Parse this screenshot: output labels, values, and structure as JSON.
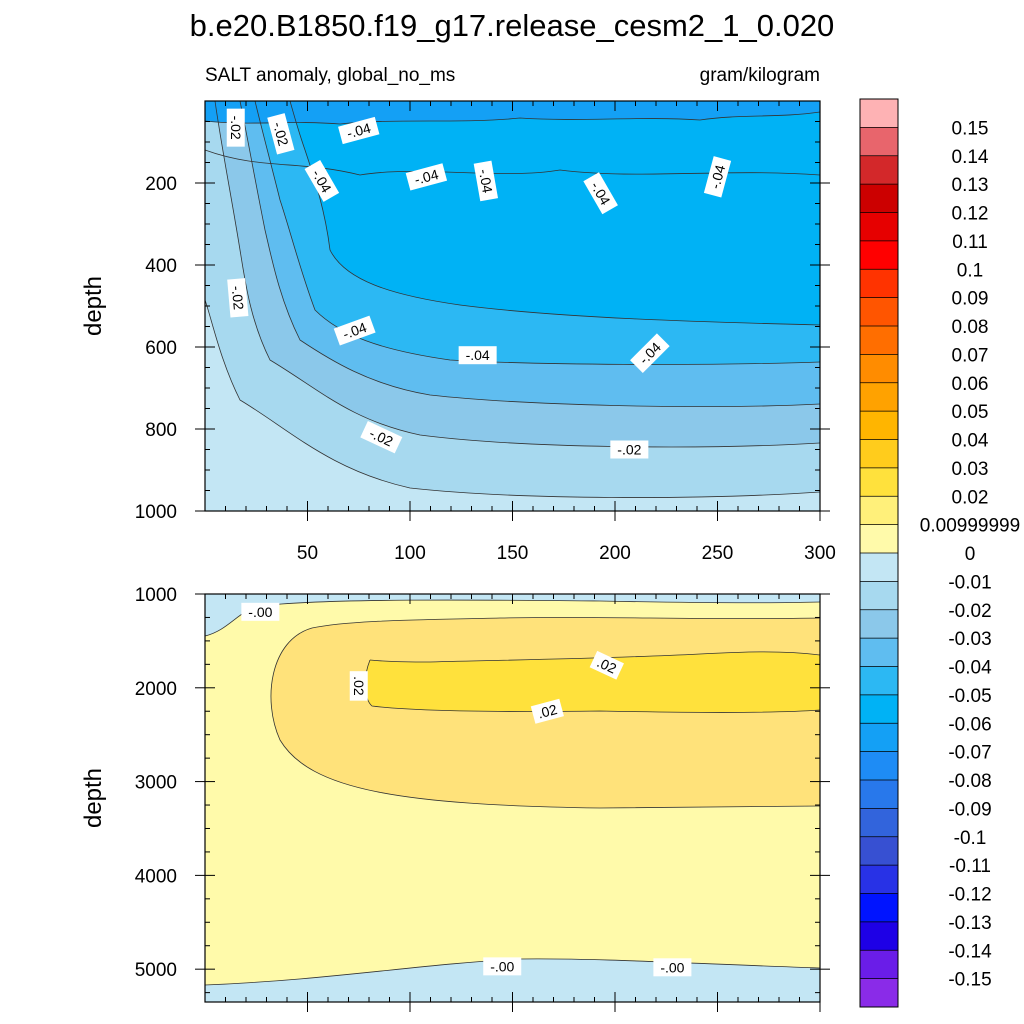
{
  "chart_data": {
    "type": "contour",
    "title": "b.e20.B1850.f19_g17.release_cesm2_1_0.020",
    "variable": "SALT anomaly, global_no_ms",
    "units": "gram/kilogram",
    "x": {
      "range": [
        0,
        300
      ],
      "ticks": [
        50,
        100,
        150,
        200,
        250,
        300
      ]
    },
    "panels": [
      {
        "name": "upper-ocean",
        "ylabel": "depth",
        "ylim": [
          0,
          1000
        ],
        "inverted": true,
        "yticks": [
          200,
          400,
          600,
          800,
          1000
        ],
        "contour_labels": [
          {
            "text": "-.02",
            "x": 15,
            "y": 65,
            "rot": 90
          },
          {
            "text": "-.02",
            "x": 37,
            "y": 80,
            "rot": 75
          },
          {
            "text": "-.04",
            "x": 75,
            "y": 72,
            "rot": -15
          },
          {
            "text": "-.04",
            "x": 57,
            "y": 195,
            "rot": 60
          },
          {
            "text": "-.04",
            "x": 108,
            "y": 185,
            "rot": -15
          },
          {
            "text": "-.04",
            "x": 137,
            "y": 195,
            "rot": 80
          },
          {
            "text": "-.04",
            "x": 193,
            "y": 225,
            "rot": 60
          },
          {
            "text": "-.04",
            "x": 250,
            "y": 185,
            "rot": -75
          },
          {
            "text": "-.02",
            "x": 16,
            "y": 480,
            "rot": 85
          },
          {
            "text": "-.04",
            "x": 73,
            "y": 560,
            "rot": -20
          },
          {
            "text": "-.04",
            "x": 133,
            "y": 620,
            "rot": 0
          },
          {
            "text": "-.04",
            "x": 217,
            "y": 615,
            "rot": -45
          },
          {
            "text": "-.02",
            "x": 86,
            "y": 820,
            "rot": 25
          },
          {
            "text": "-.02",
            "x": 207,
            "y": 850,
            "rot": 0
          }
        ]
      },
      {
        "name": "deep-ocean",
        "ylabel": "depth",
        "ylim": [
          1000,
          5350
        ],
        "inverted": true,
        "yticks": [
          1000,
          2000,
          3000,
          4000,
          5000
        ],
        "contour_labels": [
          {
            "text": "-.00",
            "x": 27,
            "y": 1190,
            "rot": 0
          },
          {
            "text": ".02",
            "x": 75,
            "y": 1980,
            "rot": 90
          },
          {
            "text": ".02",
            "x": 196,
            "y": 1760,
            "rot": 25
          },
          {
            "text": ".02",
            "x": 167,
            "y": 2250,
            "rot": -15
          },
          {
            "text": "-.00",
            "x": 145,
            "y": 4970,
            "rot": 0
          },
          {
            "text": "-.00",
            "x": 228,
            "y": 4980,
            "rot": 0
          }
        ]
      }
    ],
    "colorbar": {
      "labels": [
        "0.15",
        "0.14",
        "0.13",
        "0.12",
        "0.11",
        "0.1",
        "0.09",
        "0.08",
        "0.07",
        "0.06",
        "0.05",
        "0.04",
        "0.03",
        "0.02",
        "0.00999999",
        "0",
        "-0.01",
        "-0.02",
        "-0.03",
        "-0.04",
        "-0.05",
        "-0.06",
        "-0.07",
        "-0.08",
        "-0.09",
        "-0.1",
        "-0.11",
        "-0.12",
        "-0.13",
        "-0.14",
        "-0.15"
      ],
      "colors": [
        "#feb2b4",
        "#e8656c",
        "#d3282a",
        "#cc0000",
        "#e60000",
        "#ff0000",
        "#ff3300",
        "#ff5500",
        "#ff6e00",
        "#ff8c00",
        "#ffa200",
        "#ffb500",
        "#ffcc1c",
        "#ffe13c",
        "#fff07a",
        "#fffaaa",
        "#c3e6f4",
        "#a7d9ef",
        "#8bc8ea",
        "#5fbdf0",
        "#2cb8f3",
        "#00b2f5",
        "#14a0f5",
        "#1e8cf5",
        "#2878eb",
        "#3264dc",
        "#3750d2",
        "#2832e6",
        "#0014ff",
        "#1e00e6",
        "#6a1de8",
        "#8a2be8"
      ]
    }
  }
}
